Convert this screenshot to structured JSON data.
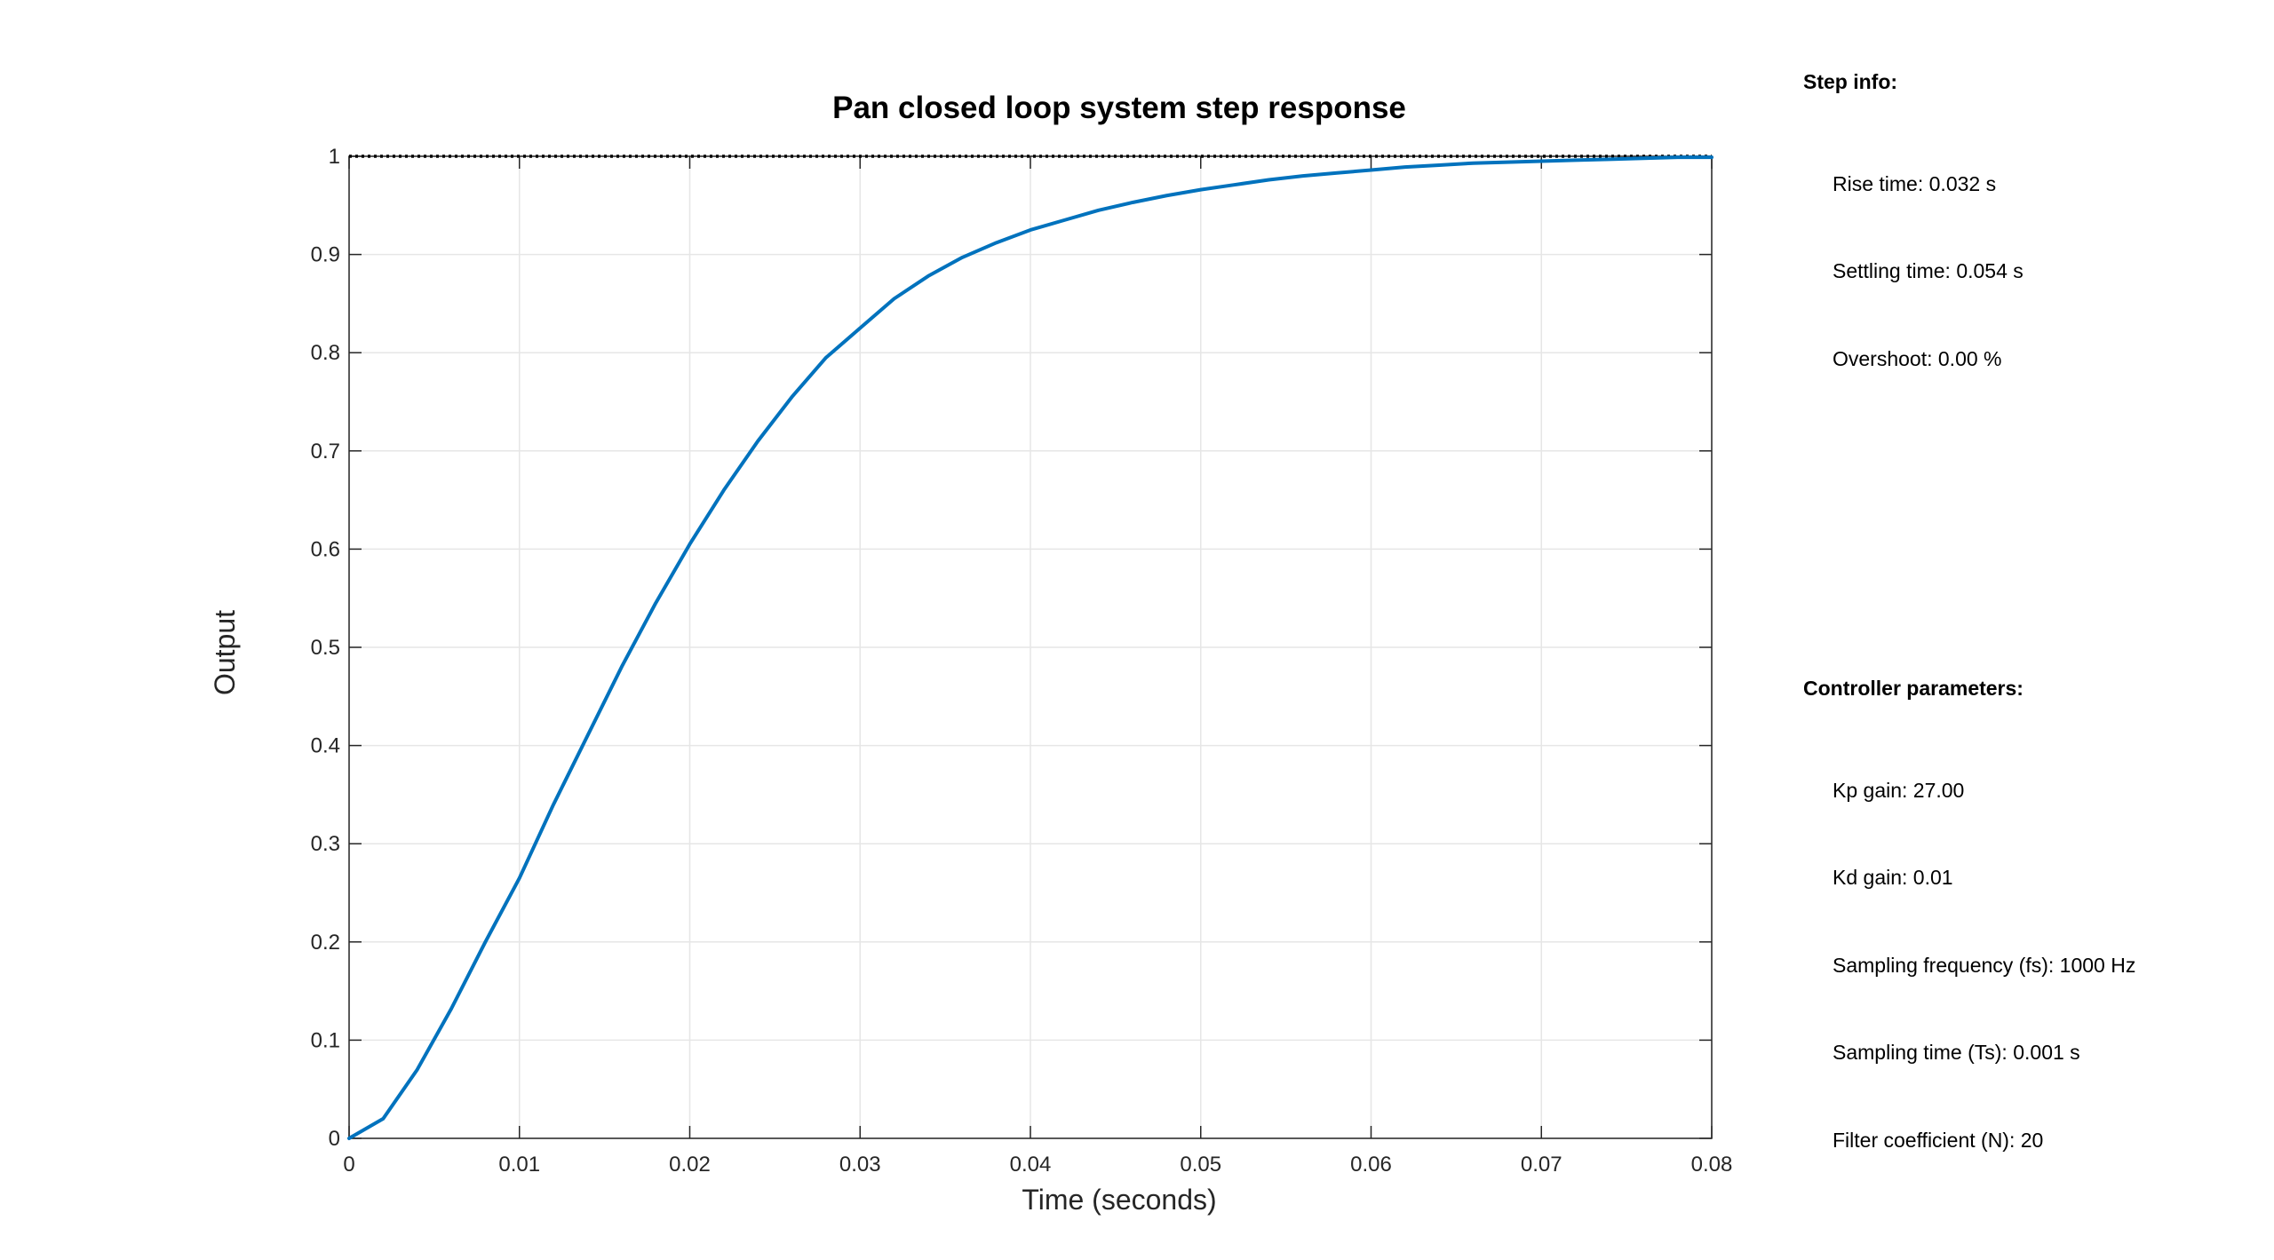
{
  "chart_data": {
    "type": "line",
    "title": "Pan closed loop system step response",
    "xlabel": "Time (seconds)",
    "ylabel": "Output",
    "xlim": [
      0,
      0.08
    ],
    "ylim": [
      0,
      1
    ],
    "x_ticks": [
      "0",
      "0.01",
      "0.02",
      "0.03",
      "0.04",
      "0.05",
      "0.06",
      "0.07",
      "0.08"
    ],
    "y_ticks": [
      "0",
      "0.1",
      "0.2",
      "0.3",
      "0.4",
      "0.5",
      "0.6",
      "0.7",
      "0.8",
      "0.9",
      "1"
    ],
    "grid": true,
    "series": [
      {
        "color": "#0072BD",
        "x": [
          0,
          0.002,
          0.004,
          0.006,
          0.008,
          0.01,
          0.012,
          0.014,
          0.016,
          0.018,
          0.02,
          0.022,
          0.024,
          0.026,
          0.028,
          0.03,
          0.032,
          0.034,
          0.036,
          0.038,
          0.04,
          0.042,
          0.044,
          0.046,
          0.048,
          0.05,
          0.052,
          0.054,
          0.056,
          0.058,
          0.06,
          0.062,
          0.064,
          0.066,
          0.068,
          0.07,
          0.072,
          0.074,
          0.076,
          0.078,
          0.08
        ],
        "y": [
          0,
          0.02,
          0.07,
          0.132,
          0.2,
          0.265,
          0.34,
          0.41,
          0.48,
          0.545,
          0.605,
          0.66,
          0.71,
          0.755,
          0.795,
          0.825,
          0.855,
          0.878,
          0.897,
          0.912,
          0.925,
          0.935,
          0.945,
          0.953,
          0.96,
          0.966,
          0.971,
          0.976,
          0.98,
          0.983,
          0.986,
          0.989,
          0.991,
          0.993,
          0.994,
          0.995,
          0.996,
          0.997,
          0.998,
          0.999,
          0.999
        ]
      }
    ],
    "reference": {
      "y": 1,
      "color": "#000000",
      "style": "dotted"
    }
  },
  "step_info": {
    "heading": "Step info:",
    "rise_time": "Rise time: 0.032 s",
    "settling_time": "Settling time: 0.054 s",
    "overshoot": "Overshoot: 0.00 %"
  },
  "controller": {
    "heading": "Controller parameters:",
    "kp": "Kp gain: 27.00",
    "kd": "Kd gain: 0.01",
    "fs": "Sampling frequency (fs): 1000 Hz",
    "ts": "Sampling time (Ts): 0.001 s",
    "n": "Filter coefficient (N): 20"
  }
}
